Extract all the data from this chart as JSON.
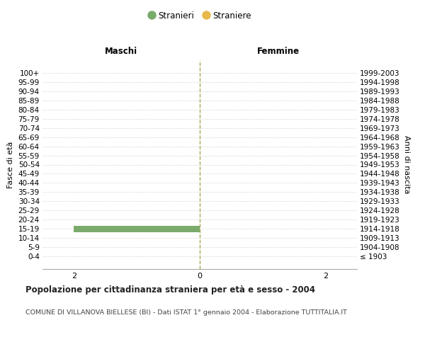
{
  "age_groups": [
    "100+",
    "95-99",
    "90-94",
    "85-89",
    "80-84",
    "75-79",
    "70-74",
    "65-69",
    "60-64",
    "55-59",
    "50-54",
    "45-49",
    "40-44",
    "35-39",
    "30-34",
    "25-29",
    "20-24",
    "15-19",
    "10-14",
    "5-9",
    "0-4"
  ],
  "birth_years": [
    "≤ 1903",
    "1904-1908",
    "1909-1913",
    "1914-1918",
    "1919-1923",
    "1924-1928",
    "1929-1933",
    "1934-1938",
    "1939-1943",
    "1944-1948",
    "1949-1953",
    "1954-1958",
    "1959-1963",
    "1964-1968",
    "1969-1973",
    "1974-1978",
    "1979-1983",
    "1984-1988",
    "1989-1993",
    "1994-1998",
    "1999-2003"
  ],
  "maschi_stranieri": [
    0,
    0,
    0,
    0,
    0,
    0,
    0,
    0,
    0,
    0,
    0,
    0,
    0,
    0,
    0,
    0,
    0,
    2,
    0,
    0,
    0
  ],
  "femmine_straniere": [
    0,
    0,
    0,
    0,
    0,
    0,
    0,
    0,
    0,
    0,
    0,
    0,
    0,
    0,
    0,
    0,
    0,
    0,
    0,
    0,
    0
  ],
  "color_maschi": "#7aab6b",
  "color_femmine": "#e8b84b",
  "xlim": 2.5,
  "xlabel_ticks": [
    -2,
    0,
    2
  ],
  "xlabel_labels": [
    "2",
    "0",
    "2"
  ],
  "title": "Popolazione per cittadinanza straniera per età e sesso - 2004",
  "subtitle": "COMUNE DI VILLANOVA BIELLESE (BI) - Dati ISTAT 1° gennaio 2004 - Elaborazione TUTTITALIA.IT",
  "ylabel_left": "Fasce di età",
  "ylabel_right": "Anni di nascita",
  "label_maschi": "Maschi",
  "label_femmine": "Femmine",
  "legend_stranieri": "Stranieri",
  "legend_straniere": "Straniere",
  "bg_color": "#ffffff",
  "grid_color": "#cccccc",
  "center_line_color": "#aaa855"
}
